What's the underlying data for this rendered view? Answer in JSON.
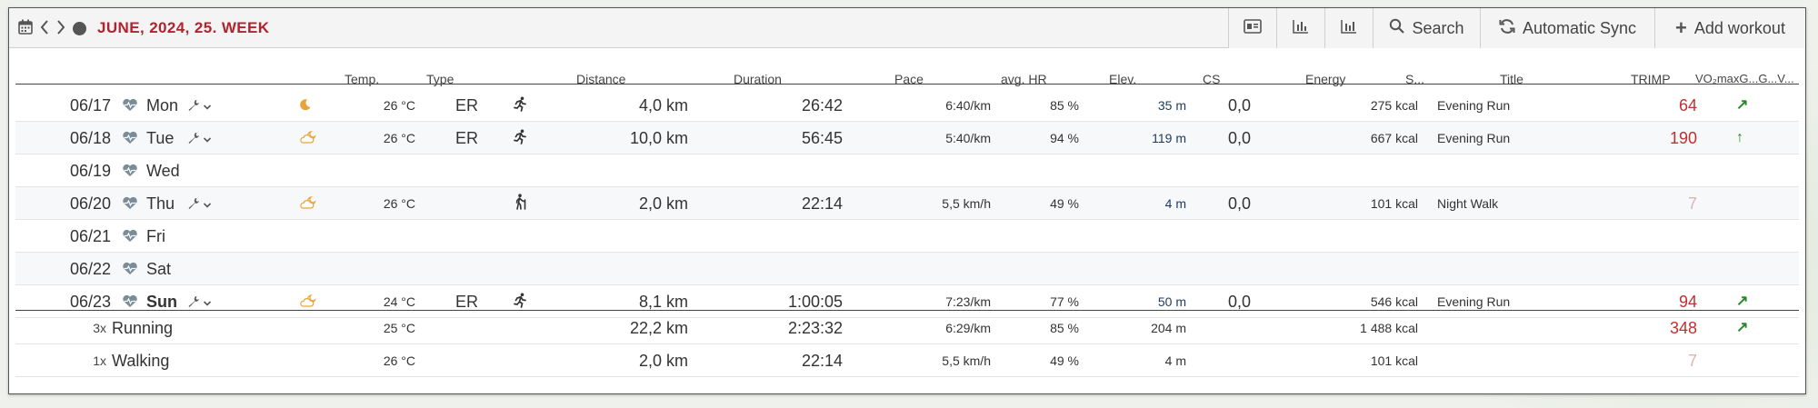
{
  "header": {
    "week_title": "JUNE, 2024, 25. WEEK",
    "toolbar": {
      "search_label": "Search",
      "sync_label": "Automatic Sync",
      "add_label": "Add workout"
    }
  },
  "columns": {
    "temp": "Temp.",
    "type": "Type",
    "distance": "Distance",
    "duration": "Duration",
    "pace": "Pace",
    "hr": "avg. HR",
    "elev": "Elev.",
    "cs": "CS",
    "energy": "Energy",
    "s": "S...",
    "title": "Title",
    "trimp": "TRIMP",
    "vo2": "VO₂maxG...G...V..."
  },
  "rows": [
    {
      "date": "06/17",
      "day": "Mon",
      "weather": "moon",
      "temp": "26 °C",
      "type": "ER",
      "sport": "running",
      "distance": "4,0 km",
      "duration": "26:42",
      "pace": "6:40/km",
      "hr": "85 %",
      "elev": "35 m",
      "cs": "0,0",
      "energy": "275 kcal",
      "title": "Evening Run",
      "trimp": "64",
      "vo2": "↗"
    },
    {
      "date": "06/18",
      "day": "Tue",
      "weather": "cloud-moon",
      "temp": "26 °C",
      "type": "ER",
      "sport": "running",
      "distance": "10,0 km",
      "duration": "56:45",
      "pace": "5:40/km",
      "hr": "94 %",
      "elev": "119 m",
      "cs": "0,0",
      "energy": "667 kcal",
      "title": "Evening Run",
      "trimp": "190",
      "vo2": "↑"
    },
    {
      "date": "06/19",
      "day": "Wed"
    },
    {
      "date": "06/20",
      "day": "Thu",
      "weather": "cloud-moon",
      "temp": "26 °C",
      "type": "",
      "sport": "walking",
      "distance": "2,0 km",
      "duration": "22:14",
      "pace": "5,5 km/h",
      "hr": "49 %",
      "elev": "4 m",
      "cs": "0,0",
      "energy": "101 kcal",
      "title": "Night Walk",
      "trimp": "7",
      "vo2": ""
    },
    {
      "date": "06/21",
      "day": "Fri"
    },
    {
      "date": "06/22",
      "day": "Sat"
    },
    {
      "date": "06/23",
      "day": "Sun",
      "weather": "cloud-moon",
      "temp": "24 °C",
      "type": "ER",
      "sport": "running",
      "distance": "8,1 km",
      "duration": "1:00:05",
      "pace": "7:23/km",
      "hr": "77 %",
      "elev": "50 m",
      "cs": "0,0",
      "energy": "546 kcal",
      "title": "Evening Run",
      "trimp": "94",
      "vo2": "↗"
    }
  ],
  "summary": [
    {
      "count": "3x",
      "sport": "Running",
      "temp": "25 °C",
      "distance": "22,2 km",
      "duration": "2:23:32",
      "pace": "6:29/km",
      "hr": "85 %",
      "elev": "204 m",
      "energy": "1 488 kcal",
      "trimp": "348",
      "vo2": "↗"
    },
    {
      "count": "1x",
      "sport": "Walking",
      "temp": "26 °C",
      "distance": "2,0 km",
      "duration": "22:14",
      "pace": "5,5 km/h",
      "hr": "49 %",
      "elev": "4 m",
      "energy": "101 kcal",
      "trimp": "7",
      "vo2": ""
    }
  ],
  "colors": {
    "accent": "#b0232f",
    "trimp": "#c0302f",
    "vo2_up": "#2a8a2a"
  }
}
